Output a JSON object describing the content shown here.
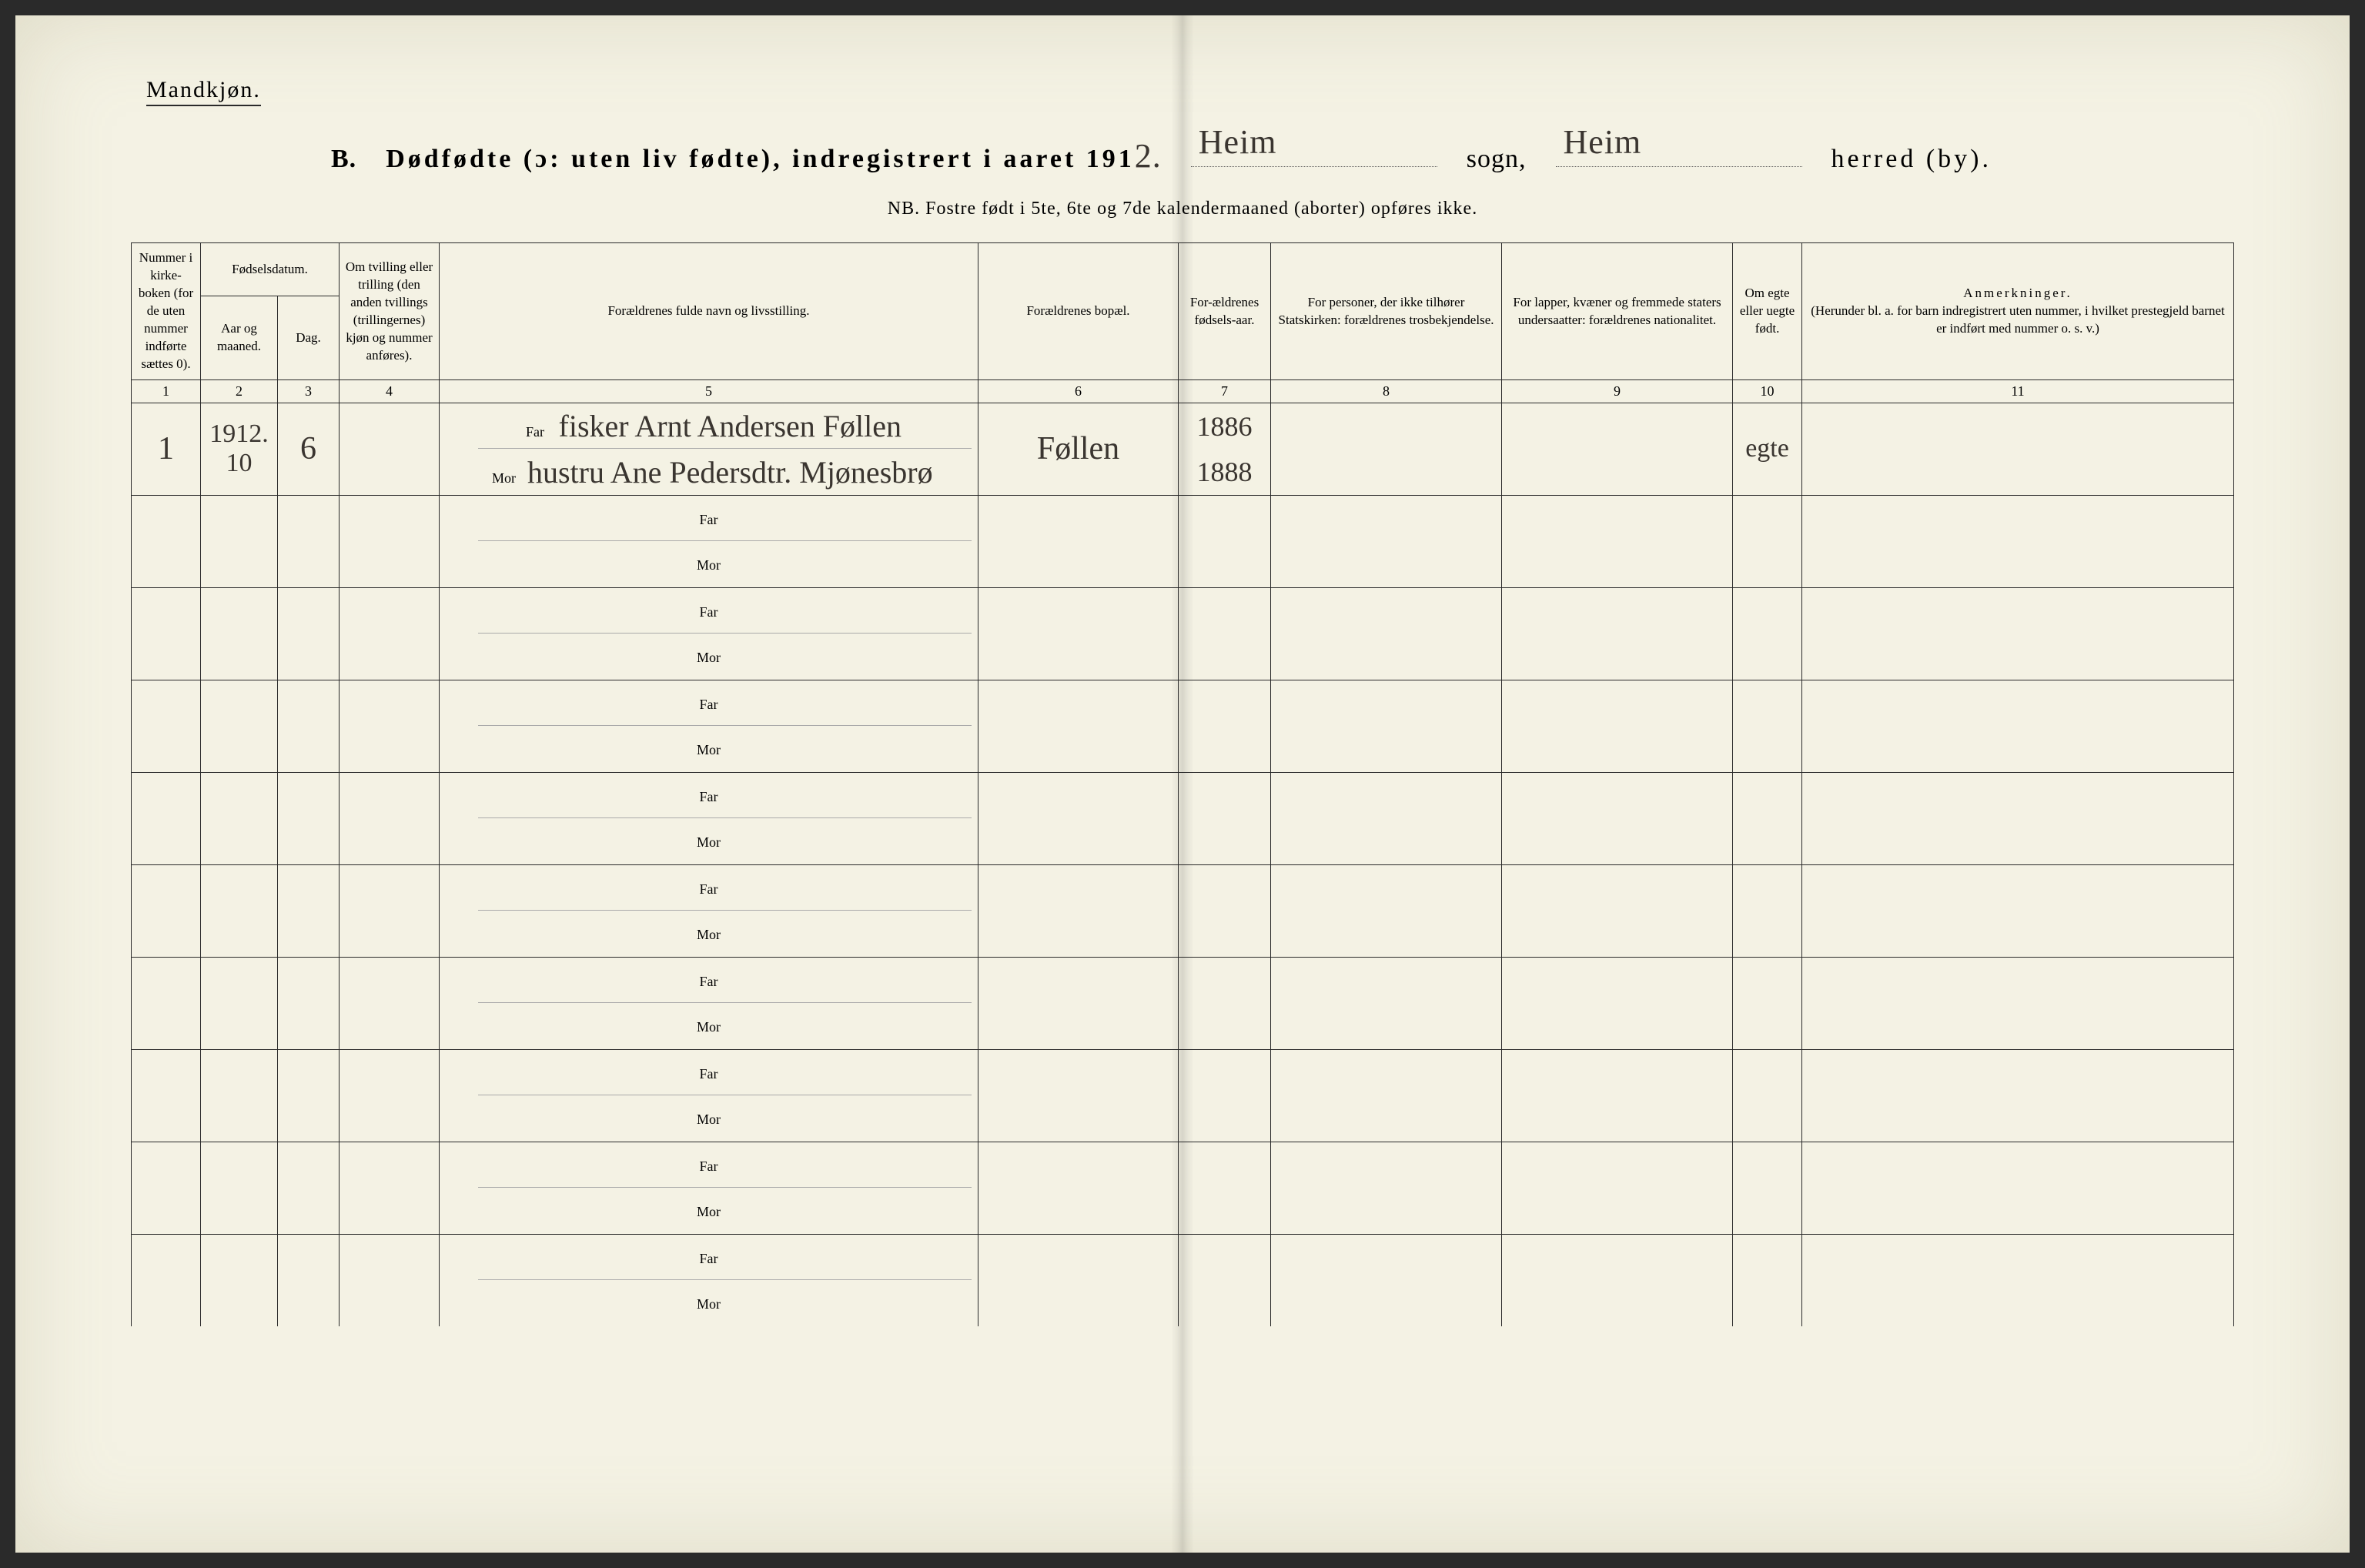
{
  "header": {
    "gender": "Mandkjøn.",
    "title_prefix_B": "B.",
    "title_main": "Dødfødte (ɔ: uten liv fødte), indregistrert i aaret 191",
    "year_digit": "2.",
    "sogn_hw": "Heim",
    "sogn_label": "sogn,",
    "herred_hw": "Heim",
    "herred_label": "herred (by).",
    "nb": "NB.  Fostre født i 5te, 6te og 7de kalendermaaned (aborter) opføres ikke."
  },
  "columns": {
    "c1": "Nummer i kirke-boken (for de uten nummer indførte sættes 0).",
    "c_fdate": "Fødselsdatum.",
    "c2": "Aar og maaned.",
    "c3": "Dag.",
    "c4": "Om tvilling eller trilling (den anden tvillings (trillingernes) kjøn og nummer anføres).",
    "c5": "Forældrenes fulde navn og livsstilling.",
    "c6": "Forældrenes bopæl.",
    "c7": "For-ældrenes fødsels-aar.",
    "c8": "For personer, der ikke tilhører Statskirken: forældrenes trosbekjendelse.",
    "c9": "For lapper, kvæner og fremmede staters undersaatter: forældrenes nationalitet.",
    "c10": "Om egte eller uegte født.",
    "c11_title": "Anmerkninger.",
    "c11_sub": "(Herunder bl. a. for barn indregistrert uten nummer, i hvilket prestegjeld barnet er indført med nummer o. s. v.)"
  },
  "colnums": [
    "1",
    "2",
    "3",
    "4",
    "5",
    "6",
    "7",
    "8",
    "9",
    "10",
    "11"
  ],
  "parent_labels": {
    "far": "Far",
    "mor": "Mor"
  },
  "entry": {
    "num": "1",
    "year_month": "1912. 10",
    "day": "6",
    "far_text": "fisker Arnt Andersen Føllen",
    "mor_text": "hustru Ane Pedersdtr. Mjønesbrø",
    "bopael": "Føllen",
    "far_year": "1886",
    "mor_year": "1888",
    "egte": "egte"
  },
  "blank_rows": 9,
  "colors": {
    "page_bg": "#f4f2e4",
    "ink": "#2a2a2a",
    "handwriting": "#3a3530",
    "faint_line": "#aaa"
  }
}
